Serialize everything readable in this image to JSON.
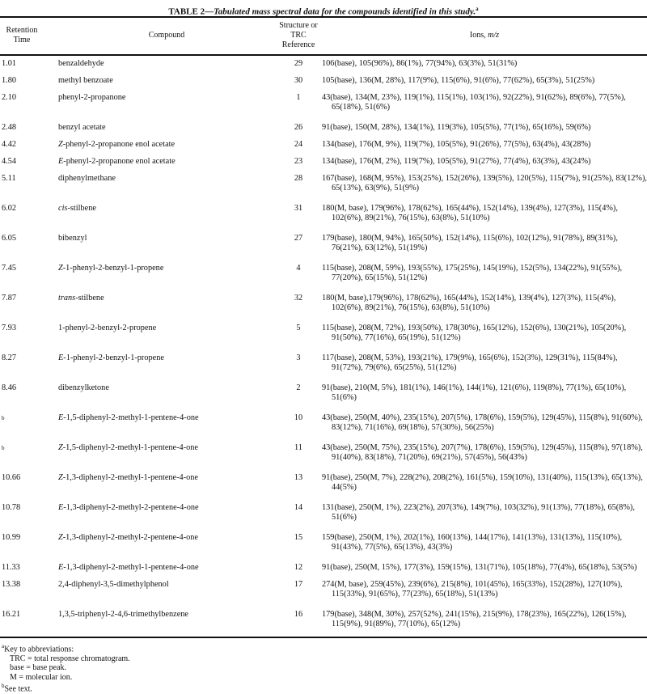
{
  "title": {
    "label": "TABLE 2",
    "caption": "—Tabulated mass spectral data for the compounds identified in this study.",
    "footnote_mark": "a"
  },
  "columns": {
    "retention_line1": "Retention",
    "retention_line2": "Time",
    "compound": "Compound",
    "reference_line1": "Structure or",
    "reference_line2": "TRC Reference",
    "ions": "Ions, ",
    "ions_unit": "m/z"
  },
  "rows": [
    {
      "rt": "1.01",
      "prefix": "",
      "compound": "benzaldehyde",
      "ref": "29",
      "ions": "106(base), 105(96%), 86(1%), 77(94%), 63(3%), 51(31%)"
    },
    {
      "rt": "1.80",
      "prefix": "",
      "compound": "methyl benzoate",
      "ref": "30",
      "ions": "105(base), 136(M, 28%), 117(9%), 115(6%), 91(6%), 77(62%), 65(3%), 51(25%)"
    },
    {
      "rt": "2.10",
      "prefix": "",
      "compound": "phenyl-2-propanone",
      "ref": "1",
      "ions": "43(base), 134(M, 23%), 119(1%), 115(1%), 103(1%), 92(22%), 91(62%), 89(6%), 77(5%), 65(18%), 51(6%)"
    },
    {
      "rt": "2.48",
      "prefix": "",
      "compound": "benzyl acetate",
      "ref": "26",
      "ions": "91(base), 150(M, 28%), 134(1%), 119(3%), 105(5%), 77(1%), 65(16%), 59(6%)"
    },
    {
      "rt": "4.42",
      "prefix": "Z",
      "compound": "-phenyl-2-propanone enol acetate",
      "ref": "24",
      "ions": "134(base), 176(M, 9%), 119(7%), 105(5%), 91(26%), 77(5%), 63(4%), 43(28%)"
    },
    {
      "rt": "4.54",
      "prefix": "E",
      "compound": "-phenyl-2-propanone enol acetate",
      "ref": "23",
      "ions": "134(base), 176(M, 2%), 119(7%), 105(5%), 91(27%), 77(4%), 63(3%), 43(24%)"
    },
    {
      "rt": "5.11",
      "prefix": "",
      "compound": "diphenylmethane",
      "ref": "28",
      "ions": "167(base), 168(M, 95%), 153(25%), 152(26%), 139(5%), 120(5%), 115(7%), 91(25%), 83(12%), 65(13%), 63(9%), 51(9%)"
    },
    {
      "rt": "6.02",
      "prefix": "cis",
      "compound": "-stilbene",
      "ref": "31",
      "ions": "180(M, base), 179(96%), 178(62%), 165(44%), 152(14%), 139(4%), 127(3%), 115(4%), 102(6%), 89(21%), 76(15%), 63(8%), 51(10%)"
    },
    {
      "rt": "6.05",
      "prefix": "",
      "compound": "bibenzyl",
      "ref": "27",
      "ions": "179(base), 180(M, 94%), 165(50%), 152(14%), 115(6%), 102(12%), 91(78%), 89(31%), 76(21%), 63(12%), 51(19%)"
    },
    {
      "rt": "7.45",
      "prefix": "Z",
      "compound": "-1-phenyl-2-benzyl-1-propene",
      "ref": "4",
      "ions": "115(base), 208(M, 59%), 193(55%), 175(25%), 145(19%), 152(5%), 134(22%), 91(55%), 77(20%), 65(15%), 51(12%)"
    },
    {
      "rt": "7.87",
      "prefix": "trans",
      "compound": "-stilbene",
      "ref": "32",
      "ions": "180(M, base),179(96%), 178(62%), 165(44%), 152(14%), 139(4%), 127(3%), 115(4%), 102(6%), 89(21%), 76(15%), 63(8%), 51(10%)"
    },
    {
      "rt": "7.93",
      "prefix": "",
      "compound": "1-phenyl-2-benzyl-2-propene",
      "ref": "5",
      "ions": "115(base), 208(M, 72%), 193(50%), 178(30%), 165(12%), 152(6%), 130(21%), 105(20%), 91(50%), 77(16%), 65(19%), 51(12%)"
    },
    {
      "rt": "8.27",
      "prefix": "E",
      "compound": "-1-phenyl-2-benzyl-1-propene",
      "ref": "3",
      "ions": "117(base), 208(M, 53%), 193(21%), 179(9%), 165(6%), 152(3%), 129(31%), 115(84%), 91(72%), 79(6%), 65(25%), 51(12%)"
    },
    {
      "rt": "8.46",
      "prefix": "",
      "compound": "dibenzylketone",
      "ref": "2",
      "ions": "91(base), 210(M, 5%), 181(1%), 146(1%), 144(1%), 121(6%), 119(8%), 77(1%), 65(10%), 51(6%)"
    },
    {
      "rt": "b",
      "prefix": "E",
      "compound": "-1,5-diphenyl-2-methyl-1-pentene-4-one",
      "ref": "10",
      "ions": "43(base), 250(M, 40%), 235(15%), 207(5%), 178(6%), 159(5%), 129(45%), 115(8%), 91(60%), 83(12%), 71(16%), 69(18%), 57(30%), 56(25%)"
    },
    {
      "rt": "b",
      "prefix": "Z",
      "compound": "-1,5-diphenyl-2-methyl-1-pentene-4-one",
      "ref": "11",
      "ions": "43(base), 250(M, 75%), 235(15%), 207(7%), 178(6%), 159(5%), 129(45%), 115(8%), 97(18%), 91(40%), 83(18%), 71(20%), 69(21%), 57(45%), 56(43%)"
    },
    {
      "rt": "10.66",
      "prefix": "Z",
      "compound": "-1,3-diphenyl-2-methyl-1-pentene-4-one",
      "ref": "13",
      "ions": "91(base), 250(M, 7%), 228(2%), 208(2%), 161(5%), 159(10%), 131(40%), 115(13%), 65(13%), 44(5%)"
    },
    {
      "rt": "10.78",
      "prefix": "E",
      "compound": "-1,3-diphenyl-2-methyl-2-pentene-4-one",
      "ref": "14",
      "ions": "131(base), 250(M, 1%), 223(2%), 207(3%), 149(7%), 103(32%), 91(13%), 77(18%), 65(8%), 51(6%)"
    },
    {
      "rt": "10.99",
      "prefix": "Z",
      "compound": "-1,3-diphenyl-2-methyl-2-pentene-4-one",
      "ref": "15",
      "ions": "159(base), 250(M, 1%), 202(1%), 160(13%), 144(17%), 141(13%), 131(13%), 115(10%), 91(43%), 77(5%), 65(13%), 43(3%)"
    },
    {
      "rt": "11.33",
      "prefix": "E",
      "compound": "-1,3-diphenyl-2-methyl-1-pentene-4-one",
      "ref": "12",
      "ions": "91(base), 250(M, 15%), 177(3%), 159(15%), 131(71%), 105(18%), 77(4%), 65(18%), 53(5%)"
    },
    {
      "rt": "13.38",
      "prefix": "",
      "compound": "2,4-diphenyl-3,5-dimethylphenol",
      "ref": "17",
      "ions": "274(M, base), 259(45%), 239(6%), 215(8%), 101(45%), 165(33%), 152(28%), 127(10%), 115(33%), 91(65%), 77(23%), 65(18%), 51(13%)"
    },
    {
      "rt": "16.21",
      "prefix": "",
      "compound": "1,3,5-triphenyl-2-4,6-trimethylbenzene",
      "ref": "16",
      "ions": "179(base), 348(M, 30%), 257(52%), 241(15%), 215(9%), 178(23%), 165(22%), 126(15%), 115(9%), 91(89%), 77(10%), 65(12%)"
    }
  ],
  "footnotes": {
    "a_mark": "a",
    "a_title": "Key to abbreviations:",
    "lines": [
      "TRC = total response chromatogram.",
      "base = base peak.",
      "M = molecular ion."
    ],
    "b_mark": "b",
    "b_text": "See text."
  }
}
